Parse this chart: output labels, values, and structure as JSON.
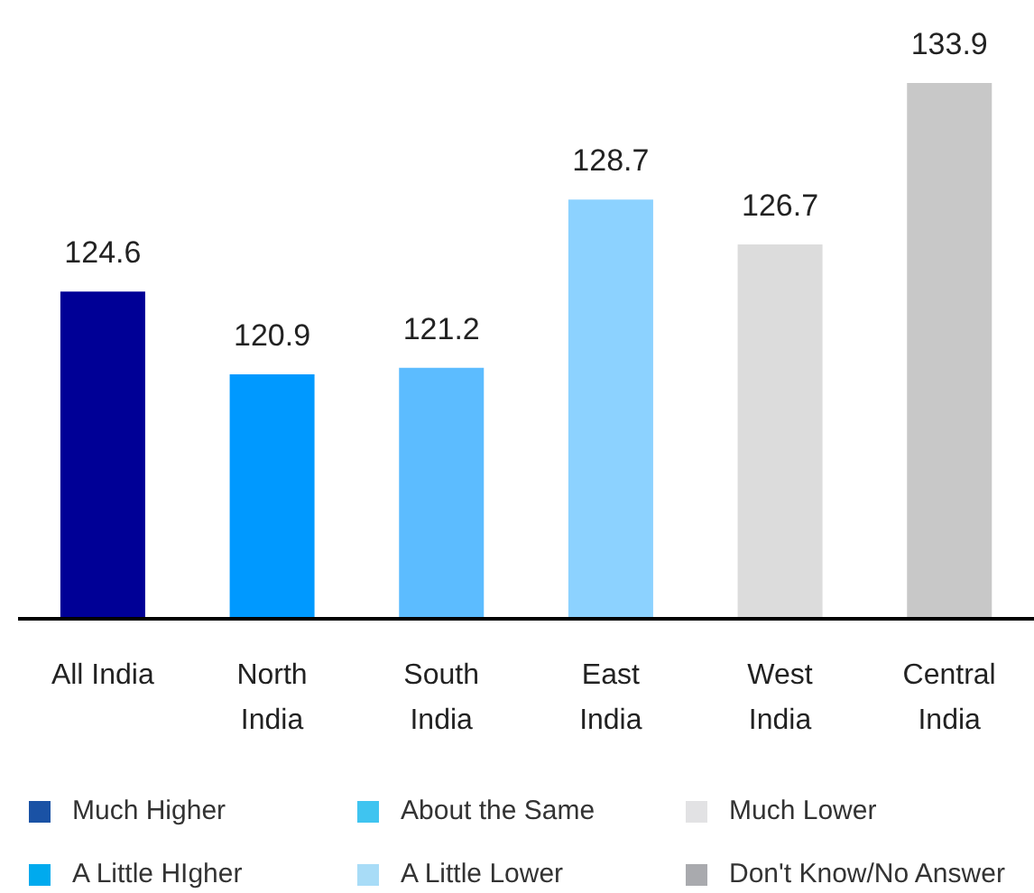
{
  "chart_data": {
    "type": "bar",
    "categories": [
      "All India",
      "North India",
      "South India",
      "East India",
      "West India",
      "Central India"
    ],
    "values": [
      124.6,
      120.9,
      121.2,
      128.7,
      126.7,
      133.9
    ],
    "colors": [
      "#000096",
      "#0099ff",
      "#5cbcff",
      "#8cd2ff",
      "#dcdcdc",
      "#c8c8c8"
    ],
    "ylim": [
      110,
      133.9
    ],
    "tick_labels": "x",
    "data_labels": true,
    "annotations": [
      "Much Higher",
      "A Little HIgher",
      "About the Same",
      "A Little Lower",
      "Much Lower",
      "Don't Know/No Answer"
    ]
  }
}
